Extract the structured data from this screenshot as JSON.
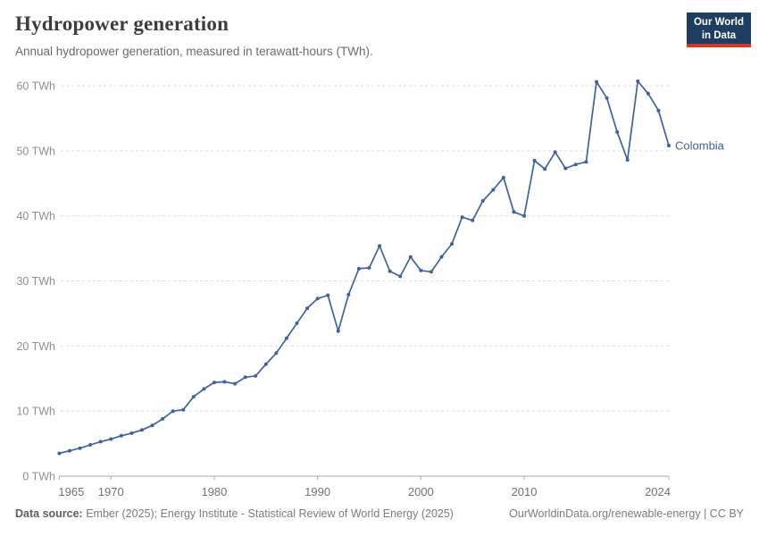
{
  "header": {
    "title": "Hydropower generation",
    "subtitle": "Annual hydropower generation, measured in terawatt-hours (TWh)."
  },
  "logo": {
    "line1": "Our World",
    "line2": "in Data"
  },
  "chart_data": {
    "type": "line",
    "title": "Hydropower generation",
    "xlabel": "",
    "ylabel": "",
    "xlim": [
      1965,
      2024
    ],
    "ylim": [
      0,
      60
    ],
    "grid": "horizontal-dashed",
    "legend_position": "end-of-line-label",
    "x_ticks": [
      1965,
      1970,
      1980,
      1990,
      2000,
      2010,
      2024
    ],
    "y_ticks": [
      0,
      10,
      20,
      30,
      40,
      50,
      60
    ],
    "y_tick_suffix": " TWh",
    "series": [
      {
        "name": "Colombia",
        "color": "#3e62a0",
        "x": [
          1965,
          1966,
          1967,
          1968,
          1969,
          1970,
          1971,
          1972,
          1973,
          1974,
          1975,
          1976,
          1977,
          1978,
          1979,
          1980,
          1981,
          1982,
          1983,
          1984,
          1985,
          1986,
          1987,
          1988,
          1989,
          1990,
          1991,
          1992,
          1993,
          1994,
          1995,
          1996,
          1997,
          1998,
          1999,
          2000,
          2001,
          2002,
          2003,
          2004,
          2005,
          2006,
          2007,
          2008,
          2009,
          2010,
          2011,
          2012,
          2013,
          2014,
          2015,
          2016,
          2017,
          2018,
          2019,
          2020,
          2021,
          2022,
          2023,
          2024
        ],
        "values": [
          3.5,
          3.9,
          4.3,
          4.8,
          5.3,
          5.7,
          6.2,
          6.6,
          7.1,
          7.8,
          8.8,
          10.0,
          10.2,
          12.2,
          13.4,
          14.4,
          14.5,
          14.2,
          15.2,
          15.4,
          17.2,
          18.9,
          21.2,
          23.5,
          25.8,
          27.3,
          27.8,
          22.3,
          27.9,
          31.9,
          32.0,
          35.4,
          31.5,
          30.7,
          33.7,
          31.6,
          31.4,
          33.7,
          35.7,
          39.8,
          39.3,
          42.3,
          44.0,
          45.9,
          40.6,
          40.0,
          48.5,
          47.2,
          49.8,
          47.3,
          47.9,
          48.3,
          60.6,
          58.1,
          52.9,
          48.6,
          60.7,
          58.8,
          56.2,
          50.8
        ]
      }
    ]
  },
  "footer": {
    "source_label": "Data source:",
    "source_text": " Ember (2025); Energy Institute - Statistical Review of World Energy (2025)",
    "right_text": "OurWorldinData.org/renewable-energy | CC BY"
  },
  "colors": {
    "line": "#3e62a0",
    "gridline": "#dcdcdc",
    "axis": "#a9a9a9",
    "y_label": "#8f8f8f",
    "x_label": "#737373",
    "logo_bg": "#1d3d63",
    "logo_accent": "#e0301e"
  }
}
